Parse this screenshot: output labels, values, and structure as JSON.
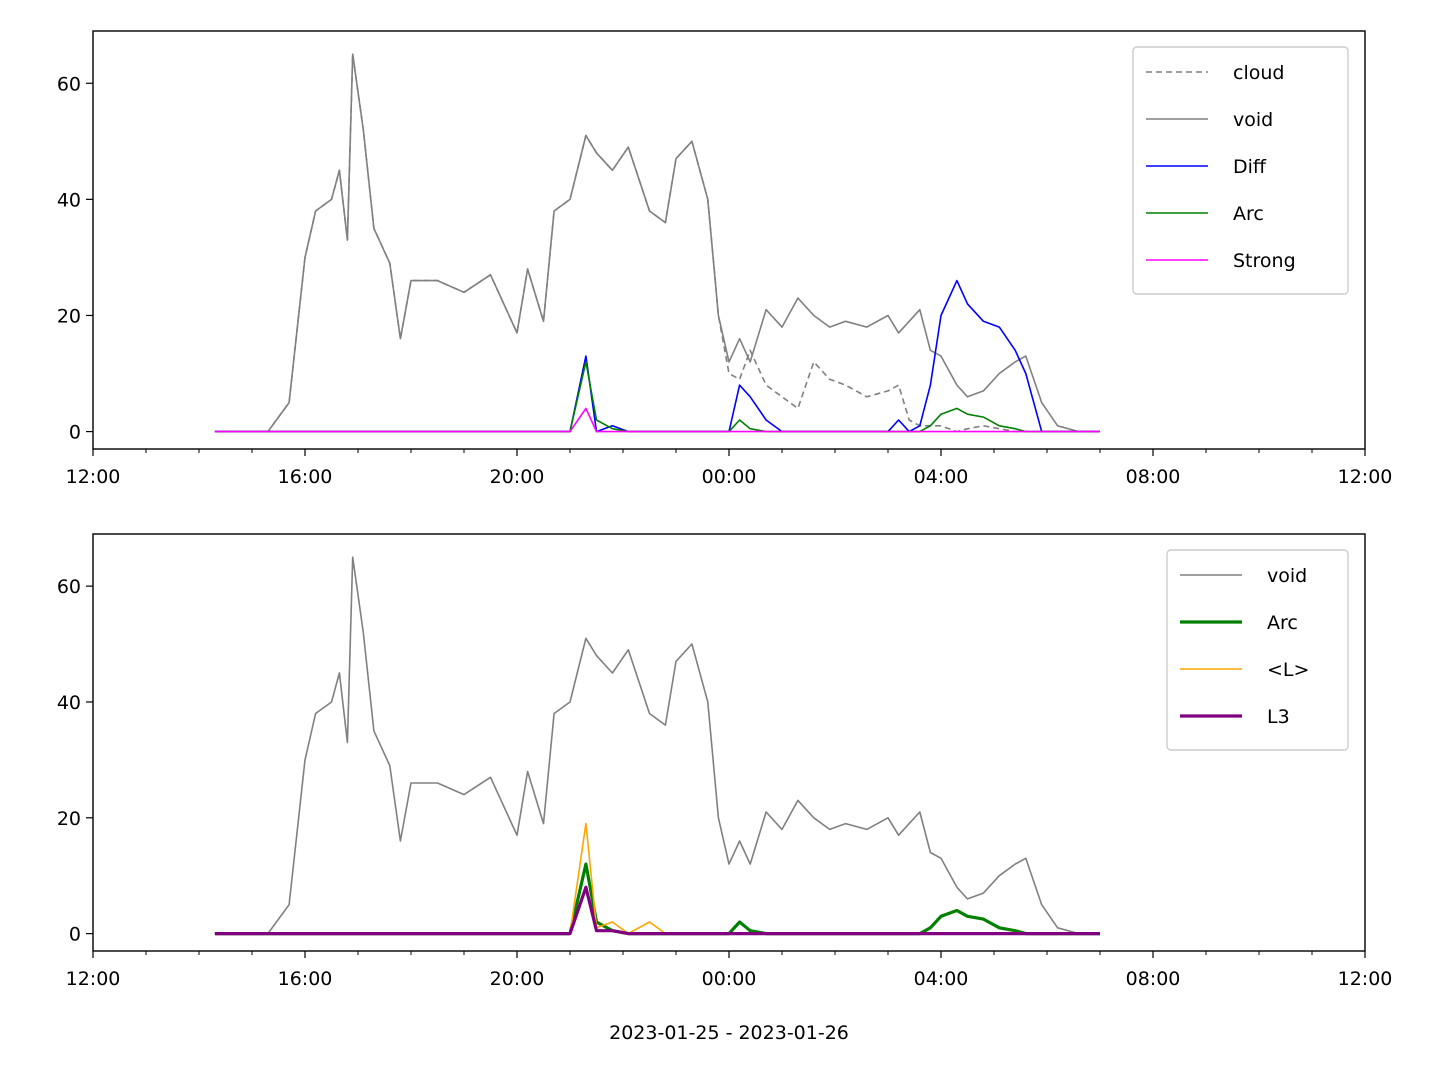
{
  "figure": {
    "xlabel": "2023-01-25 - 2023-01-26"
  },
  "chart_data": [
    {
      "type": "line",
      "title": "",
      "xlabel": "",
      "ylabel": "",
      "xlim": [
        "2023-01-25 12:00",
        "2023-01-26 12:00"
      ],
      "ylim": [
        -3,
        69
      ],
      "yticks": [
        0,
        20,
        40,
        60
      ],
      "xticks": [
        "12:00",
        "16:00",
        "20:00",
        "00:00",
        "04:00",
        "08:00",
        "12:00"
      ],
      "grid": false,
      "legend_position": "upper right",
      "x_hours": [
        14.3,
        15.3,
        15.7,
        16.0,
        16.2,
        16.5,
        16.65,
        16.8,
        16.9,
        17.1,
        17.3,
        17.6,
        17.8,
        18.0,
        18.5,
        19.0,
        19.5,
        20.0,
        20.2,
        20.5,
        20.7,
        21.0,
        21.3,
        21.5,
        21.8,
        22.1,
        22.5,
        22.8,
        23.0,
        23.3,
        23.6,
        23.8,
        24.0,
        24.2,
        24.4,
        24.7,
        25.0,
        25.3,
        25.6,
        25.9,
        26.2,
        26.6,
        27.0,
        27.2,
        27.4,
        27.6,
        27.8,
        28.0,
        28.3,
        28.5,
        28.8,
        29.1,
        29.4,
        29.6,
        29.9,
        30.2,
        30.6,
        31.0
      ],
      "series": [
        {
          "name": "cloud",
          "color": "#808080",
          "style": "dashed",
          "values": [
            0,
            0,
            5,
            30,
            38,
            40,
            45,
            33,
            65,
            52,
            35,
            29,
            16,
            26,
            26,
            24,
            27,
            17,
            28,
            19,
            38,
            40,
            51,
            48,
            45,
            49,
            38,
            36,
            47,
            50,
            40,
            20,
            10,
            9,
            14,
            8,
            6,
            4,
            12,
            9,
            8,
            6,
            7,
            8,
            2,
            1,
            1,
            1,
            0,
            0.5,
            1,
            0.5,
            0,
            0,
            0,
            0,
            0,
            0
          ]
        },
        {
          "name": "void",
          "color": "#808080",
          "style": "solid",
          "values": [
            0,
            0,
            5,
            30,
            38,
            40,
            45,
            33,
            65,
            52,
            35,
            29,
            16,
            26,
            26,
            24,
            27,
            17,
            28,
            19,
            38,
            40,
            51,
            48,
            45,
            49,
            38,
            36,
            47,
            50,
            40,
            20,
            12,
            16,
            12,
            21,
            18,
            23,
            20,
            18,
            19,
            18,
            20,
            17,
            19,
            21,
            14,
            13,
            8,
            6,
            7,
            10,
            12,
            13,
            5,
            1,
            0,
            0
          ]
        },
        {
          "name": "Diff",
          "color": "#0000ff",
          "style": "solid",
          "values": [
            0,
            0,
            0,
            0,
            0,
            0,
            0,
            0,
            0,
            0,
            0,
            0,
            0,
            0,
            0,
            0,
            0,
            0,
            0,
            0,
            0,
            0,
            13,
            0,
            1,
            0,
            0,
            0,
            0,
            0,
            0,
            0,
            0,
            8,
            6,
            2,
            0,
            0,
            0,
            0,
            0,
            0,
            0,
            2,
            0,
            1,
            8,
            20,
            26,
            22,
            19,
            18,
            14,
            10,
            0,
            0,
            0,
            0
          ]
        },
        {
          "name": "Arc",
          "color": "#008000",
          "style": "solid",
          "values": [
            0,
            0,
            0,
            0,
            0,
            0,
            0,
            0,
            0,
            0,
            0,
            0,
            0,
            0,
            0,
            0,
            0,
            0,
            0,
            0,
            0,
            0,
            12,
            2,
            0.5,
            0,
            0,
            0,
            0,
            0,
            0,
            0,
            0,
            2,
            0.5,
            0,
            0,
            0,
            0,
            0,
            0,
            0,
            0,
            0,
            0,
            0,
            1,
            3,
            4,
            3,
            2.5,
            1,
            0.5,
            0,
            0,
            0,
            0,
            0
          ]
        },
        {
          "name": "Strong",
          "color": "#ff00ff",
          "style": "solid",
          "values": [
            0,
            0,
            0,
            0,
            0,
            0,
            0,
            0,
            0,
            0,
            0,
            0,
            0,
            0,
            0,
            0,
            0,
            0,
            0,
            0,
            0,
            0,
            4,
            0,
            0,
            0,
            0,
            0,
            0,
            0,
            0,
            0,
            0,
            0,
            0,
            0,
            0,
            0,
            0,
            0,
            0,
            0,
            0,
            0,
            0,
            0,
            0,
            0,
            0,
            0,
            0,
            0,
            0,
            0,
            0,
            0,
            0,
            0
          ]
        }
      ]
    },
    {
      "type": "line",
      "title": "",
      "xlabel": "2023-01-25 - 2023-01-26",
      "ylabel": "",
      "xlim": [
        "2023-01-25 12:00",
        "2023-01-26 12:00"
      ],
      "ylim": [
        -3,
        69
      ],
      "yticks": [
        0,
        20,
        40,
        60
      ],
      "xticks": [
        "12:00",
        "16:00",
        "20:00",
        "00:00",
        "04:00",
        "08:00",
        "12:00"
      ],
      "grid": false,
      "legend_position": "upper right",
      "x_hours": [
        14.3,
        15.3,
        15.7,
        16.0,
        16.2,
        16.5,
        16.65,
        16.8,
        16.9,
        17.1,
        17.3,
        17.6,
        17.8,
        18.0,
        18.5,
        19.0,
        19.5,
        20.0,
        20.2,
        20.5,
        20.7,
        21.0,
        21.3,
        21.5,
        21.8,
        22.1,
        22.5,
        22.8,
        23.0,
        23.3,
        23.6,
        23.8,
        24.0,
        24.2,
        24.4,
        24.7,
        25.0,
        25.3,
        25.6,
        25.9,
        26.2,
        26.6,
        27.0,
        27.2,
        27.4,
        27.6,
        27.8,
        28.0,
        28.3,
        28.5,
        28.8,
        29.1,
        29.4,
        29.6,
        29.9,
        30.2,
        30.6,
        31.0
      ],
      "series": [
        {
          "name": "void",
          "color": "#808080",
          "style": "solid",
          "values": [
            0,
            0,
            5,
            30,
            38,
            40,
            45,
            33,
            65,
            52,
            35,
            29,
            16,
            26,
            26,
            24,
            27,
            17,
            28,
            19,
            38,
            40,
            51,
            48,
            45,
            49,
            38,
            36,
            47,
            50,
            40,
            20,
            12,
            16,
            12,
            21,
            18,
            23,
            20,
            18,
            19,
            18,
            20,
            17,
            19,
            21,
            14,
            13,
            8,
            6,
            7,
            10,
            12,
            13,
            5,
            1,
            0,
            0
          ]
        },
        {
          "name": "Arc",
          "color": "#008000",
          "style": "thick",
          "values": [
            0,
            0,
            0,
            0,
            0,
            0,
            0,
            0,
            0,
            0,
            0,
            0,
            0,
            0,
            0,
            0,
            0,
            0,
            0,
            0,
            0,
            0,
            12,
            2,
            0.5,
            0,
            0,
            0,
            0,
            0,
            0,
            0,
            0,
            2,
            0.5,
            0,
            0,
            0,
            0,
            0,
            0,
            0,
            0,
            0,
            0,
            0,
            1,
            3,
            4,
            3,
            2.5,
            1,
            0.5,
            0,
            0,
            0,
            0,
            0
          ]
        },
        {
          "name": "<L>",
          "color": "#ffa500",
          "style": "solid",
          "values": [
            0,
            0,
            0,
            0,
            0,
            0,
            0,
            0,
            0,
            0,
            0,
            0,
            0,
            0,
            0,
            0,
            0,
            0,
            0,
            0,
            0,
            0,
            19,
            1,
            2,
            0,
            2,
            0,
            0,
            0,
            0,
            0,
            0,
            0,
            0,
            0,
            0,
            0,
            0,
            0,
            0,
            0,
            0,
            0,
            0,
            0,
            0,
            0,
            0,
            0,
            0,
            0,
            0,
            0,
            0,
            0,
            0,
            0
          ]
        },
        {
          "name": "L3",
          "color": "#800080",
          "style": "thick",
          "values": [
            0,
            0,
            0,
            0,
            0,
            0,
            0,
            0,
            0,
            0,
            0,
            0,
            0,
            0,
            0,
            0,
            0,
            0,
            0,
            0,
            0,
            0,
            8,
            0.5,
            0.5,
            0,
            0,
            0,
            0,
            0,
            0,
            0,
            0,
            0,
            0,
            0,
            0,
            0,
            0,
            0,
            0,
            0,
            0,
            0,
            0,
            0,
            0,
            0,
            0,
            0,
            0,
            0,
            0,
            0,
            0,
            0,
            0,
            0
          ]
        }
      ]
    }
  ]
}
